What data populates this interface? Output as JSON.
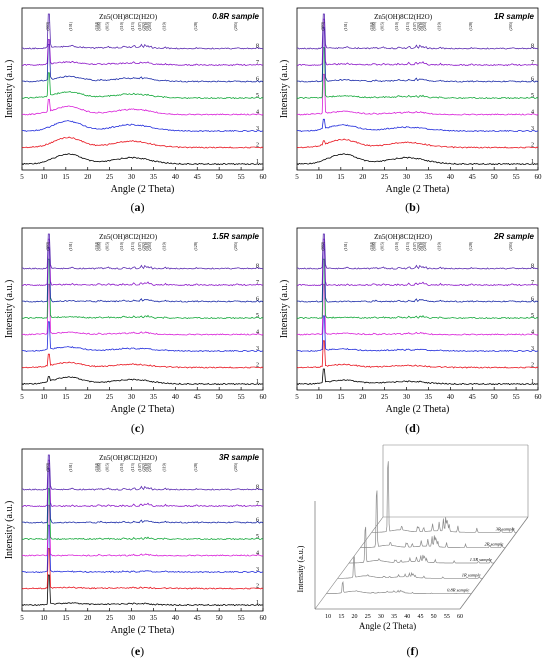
{
  "colors": {
    "series": [
      "#000000",
      "#e8141e",
      "#1f2adb",
      "#d81ed8",
      "#14a83a",
      "#1a2aa8",
      "#8c18c8",
      "#5a2ab0"
    ]
  },
  "captions": {
    "a": [
      "(",
      "a",
      ")"
    ],
    "b": [
      "(",
      "b",
      ")"
    ],
    "c": [
      "(",
      "c",
      ")"
    ],
    "d": [
      "(",
      "d",
      ")"
    ],
    "e": [
      "(",
      "e",
      ")"
    ],
    "f": [
      "(",
      "f",
      ")"
    ]
  },
  "chart_data": [
    {
      "id": "a",
      "type": "line",
      "title": "0.8R sample",
      "formula": "Zn5(OH)8Cl2(H2O)",
      "xlabel": "Angle (2 Theta)",
      "ylabel": "Intensity (a.u.)",
      "xlim": [
        5,
        60
      ],
      "xticks": [
        5,
        10,
        15,
        20,
        25,
        30,
        35,
        40,
        45,
        50,
        55,
        60
      ],
      "peak_labels": [
        "(003)",
        "(101)",
        "(104)",
        "(006)",
        "(015)",
        "(110)",
        "(113)",
        "(107)",
        "(202)",
        "(018)",
        "(205)",
        "(119)",
        "(128)",
        "(205)"
      ],
      "series": [
        {
          "name": "1",
          "color_index": 0,
          "amorphous": 1.0,
          "crystal": 0.0
        },
        {
          "name": "2",
          "color_index": 1,
          "amorphous": 1.0,
          "crystal": 0.0
        },
        {
          "name": "3",
          "color_index": 2,
          "amorphous": 1.0,
          "crystal": 0.0
        },
        {
          "name": "4",
          "color_index": 3,
          "amorphous": 0.8,
          "crystal": 0.15
        },
        {
          "name": "5",
          "color_index": 4,
          "amorphous": 0.6,
          "crystal": 0.3
        },
        {
          "name": "6",
          "color_index": 5,
          "amorphous": 0.5,
          "crystal": 0.55
        },
        {
          "name": "7",
          "color_index": 6,
          "amorphous": 0.3,
          "crystal": 0.5
        },
        {
          "name": "8",
          "color_index": 7,
          "amorphous": 0.2,
          "crystal": 1.0
        }
      ]
    },
    {
      "id": "b",
      "type": "line",
      "title": "1R sample",
      "formula": "Zn5(OH)8Cl2(H2O)",
      "xlabel": "Angle (2 Theta)",
      "ylabel": "Intensity (a.u.)",
      "xlim": [
        5,
        60
      ],
      "xticks": [
        5,
        10,
        15,
        20,
        25,
        30,
        35,
        40,
        45,
        50,
        55,
        60
      ],
      "peak_labels": [
        "(003)",
        "(101)",
        "(104)",
        "(006)",
        "(015)",
        "(110)",
        "(113)",
        "(107)",
        "(202)",
        "(018)",
        "(205)",
        "(119)",
        "(128)",
        "(205)"
      ],
      "series": [
        {
          "name": "1",
          "color_index": 0,
          "amorphous": 1.0,
          "crystal": 0.0
        },
        {
          "name": "2",
          "color_index": 1,
          "amorphous": 0.8,
          "crystal": 0.05
        },
        {
          "name": "3",
          "color_index": 2,
          "amorphous": 0.6,
          "crystal": 0.1
        },
        {
          "name": "4",
          "color_index": 3,
          "amorphous": 0.3,
          "crystal": 0.4
        },
        {
          "name": "5",
          "color_index": 4,
          "amorphous": 0.2,
          "crystal": 0.6
        },
        {
          "name": "6",
          "color_index": 5,
          "amorphous": 0.15,
          "crystal": 0.8
        },
        {
          "name": "7",
          "color_index": 6,
          "amorphous": 0.1,
          "crystal": 0.9
        },
        {
          "name": "8",
          "color_index": 7,
          "amorphous": 0.05,
          "crystal": 1.0
        }
      ]
    },
    {
      "id": "c",
      "type": "line",
      "title": "1.5R sample",
      "formula": "Zn5(OH)8Cl2(H2O)",
      "xlabel": "Angle (2 Theta)",
      "ylabel": "Intensity (a.u.)",
      "xlim": [
        5,
        60
      ],
      "xticks": [
        5,
        10,
        15,
        20,
        25,
        30,
        35,
        40,
        45,
        50,
        55,
        60
      ],
      "peak_labels": [
        "(003)",
        "(101)",
        "(104)",
        "(006)",
        "(015)",
        "(110)",
        "(113)",
        "(107)",
        "(202)",
        "(018)",
        "(205)",
        "(119)",
        "(128)",
        "(205)"
      ],
      "series": [
        {
          "name": "1",
          "color_index": 0,
          "amorphous": 0.7,
          "crystal": 0.05
        },
        {
          "name": "2",
          "color_index": 1,
          "amorphous": 0.5,
          "crystal": 0.1
        },
        {
          "name": "3",
          "color_index": 2,
          "amorphous": 0.4,
          "crystal": 0.25
        },
        {
          "name": "4",
          "color_index": 3,
          "amorphous": 0.2,
          "crystal": 0.5
        },
        {
          "name": "5",
          "color_index": 4,
          "amorphous": 0.1,
          "crystal": 0.7
        },
        {
          "name": "6",
          "color_index": 5,
          "amorphous": 0.05,
          "crystal": 0.8
        },
        {
          "name": "7",
          "color_index": 6,
          "amorphous": 0.05,
          "crystal": 0.9
        },
        {
          "name": "8",
          "color_index": 7,
          "amorphous": 0.0,
          "crystal": 1.0
        }
      ]
    },
    {
      "id": "d",
      "type": "line",
      "title": "2R sample",
      "formula": "Zn5(OH)8Cl2(H2O)",
      "xlabel": "Angle (2 Theta)",
      "ylabel": "Intensity (a.u.)",
      "xlim": [
        5,
        60
      ],
      "xticks": [
        5,
        10,
        15,
        20,
        25,
        30,
        35,
        40,
        45,
        50,
        55,
        60
      ],
      "peak_labels": [
        "(003)",
        "(101)",
        "(104)",
        "(006)",
        "(015)",
        "(110)",
        "(113)",
        "(107)",
        "(202)",
        "(018)",
        "(205)",
        "(119)",
        "(128)",
        "(205)"
      ],
      "series": [
        {
          "name": "1",
          "color_index": 0,
          "amorphous": 0.4,
          "crystal": 0.1
        },
        {
          "name": "2",
          "color_index": 1,
          "amorphous": 0.3,
          "crystal": 0.2
        },
        {
          "name": "3",
          "color_index": 2,
          "amorphous": 0.2,
          "crystal": 0.3
        },
        {
          "name": "4",
          "color_index": 3,
          "amorphous": 0.1,
          "crystal": 0.5
        },
        {
          "name": "5",
          "color_index": 4,
          "amorphous": 0.05,
          "crystal": 0.7
        },
        {
          "name": "6",
          "color_index": 5,
          "amorphous": 0.0,
          "crystal": 0.85
        },
        {
          "name": "7",
          "color_index": 6,
          "amorphous": 0.0,
          "crystal": 0.9
        },
        {
          "name": "8",
          "color_index": 7,
          "amorphous": 0.0,
          "crystal": 1.0
        }
      ]
    },
    {
      "id": "e",
      "type": "line",
      "title": "3R sample",
      "formula": "Zn5(OH)8Cl2(H2O)",
      "xlabel": "Angle (2 Theta)",
      "ylabel": "Intensity (a.u.)",
      "xlim": [
        5,
        60
      ],
      "xticks": [
        5,
        10,
        15,
        20,
        25,
        30,
        35,
        40,
        45,
        50,
        55,
        60
      ],
      "peak_labels": [
        "(003)",
        "(101)",
        "(104)",
        "(006)",
        "(015)",
        "(110)",
        "(113)",
        "(107)",
        "(202)",
        "(018)",
        "(205)",
        "(119)",
        "(128)",
        "(205)"
      ],
      "series": [
        {
          "name": "1",
          "color_index": 0,
          "amorphous": 0.2,
          "crystal": 0.2
        },
        {
          "name": "2",
          "color_index": 1,
          "amorphous": 0.1,
          "crystal": 0.3
        },
        {
          "name": "3",
          "color_index": 2,
          "amorphous": 0.05,
          "crystal": 0.4
        },
        {
          "name": "4",
          "color_index": 3,
          "amorphous": 0.0,
          "crystal": 0.5
        },
        {
          "name": "5",
          "color_index": 4,
          "amorphous": 0.0,
          "crystal": 0.6
        },
        {
          "name": "6",
          "color_index": 5,
          "amorphous": 0.0,
          "crystal": 0.8
        },
        {
          "name": "7",
          "color_index": 6,
          "amorphous": 0.0,
          "crystal": 0.9
        },
        {
          "name": "8",
          "color_index": 7,
          "amorphous": 0.0,
          "crystal": 1.0
        }
      ]
    },
    {
      "id": "f",
      "type": "line",
      "title": "",
      "xlabel": "Angle (2 Theta)",
      "ylabel": "Intensity (a.u.)",
      "xlim": [
        5,
        60
      ],
      "xticks": [
        10,
        15,
        20,
        25,
        30,
        35,
        40,
        45,
        50,
        55,
        60
      ],
      "series": [
        {
          "name": "0.8R sample",
          "crystal": 0.15
        },
        {
          "name": "1R sample",
          "crystal": 0.3
        },
        {
          "name": "1.5R sample",
          "crystal": 0.5
        },
        {
          "name": "2R sample",
          "crystal": 0.8
        },
        {
          "name": "3R sample",
          "crystal": 1.0
        }
      ]
    }
  ]
}
